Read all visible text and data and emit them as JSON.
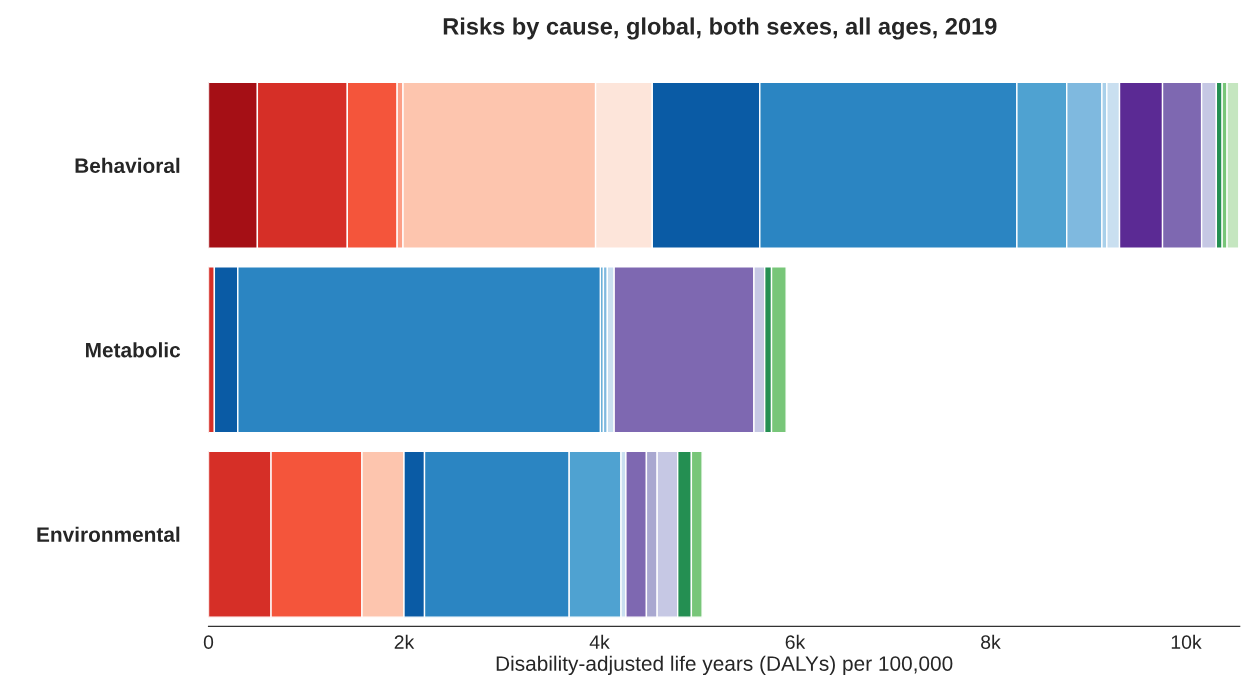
{
  "chart_data": {
    "type": "bar",
    "orientation": "horizontal",
    "stacked": true,
    "title": "Risks by cause, global, both sexes, all ages, 2019",
    "xlabel": "Disability-adjusted life years (DALYs) per 100,000",
    "categories": [
      "Behavioral",
      "Metabolic",
      "Environmental"
    ],
    "xlim": [
      0,
      10550
    ],
    "xticks": [
      0,
      {
        "value": 2000,
        "label": "2k"
      },
      {
        "value": 4000,
        "label": "4k"
      },
      {
        "value": 6000,
        "label": "6k"
      },
      {
        "value": 8000,
        "label": "8k"
      },
      {
        "value": 10000,
        "label": "10k"
      }
    ],
    "grid": false,
    "legend": false,
    "series": [
      {
        "color": "#a50f15",
        "values": [
          500,
          null,
          null
        ]
      },
      {
        "color": "#d62f27",
        "values": [
          920,
          60,
          640
        ]
      },
      {
        "color": "#f4553b",
        "values": [
          510,
          null,
          930
        ]
      },
      {
        "color": "#fc9f86",
        "values": [
          60,
          null,
          null
        ]
      },
      {
        "color": "#fdc5ae",
        "values": [
          1970,
          null,
          430
        ]
      },
      {
        "color": "#fde5da",
        "values": [
          580,
          null,
          null
        ]
      },
      {
        "color": "#0a5ba5",
        "values": [
          1100,
          240,
          210
        ]
      },
      {
        "color": "#2b85c2",
        "values": [
          2630,
          3710,
          1480
        ]
      },
      {
        "color": "#4fa2d1",
        "values": [
          510,
          30,
          530
        ]
      },
      {
        "color": "#7fb9df",
        "values": [
          360,
          40,
          null
        ]
      },
      {
        "color": "#a9d0ea",
        "values": [
          50,
          null,
          null
        ]
      },
      {
        "color": "#c9dff0",
        "values": [
          130,
          70,
          50
        ]
      },
      {
        "color": "#5b2a94",
        "values": [
          440,
          null,
          null
        ]
      },
      {
        "color": "#7e68b1",
        "values": [
          400,
          1430,
          210
        ]
      },
      {
        "color": "#a9a8d0",
        "values": [
          null,
          null,
          110
        ]
      },
      {
        "color": "#c6c8e4",
        "values": [
          150,
          110,
          210
        ]
      },
      {
        "color": "#248f52",
        "values": [
          60,
          70,
          140
        ]
      },
      {
        "color": "#78c679",
        "values": [
          50,
          150,
          110
        ]
      },
      {
        "color": "#c5e6c0",
        "values": [
          120,
          null,
          null
        ]
      }
    ]
  }
}
